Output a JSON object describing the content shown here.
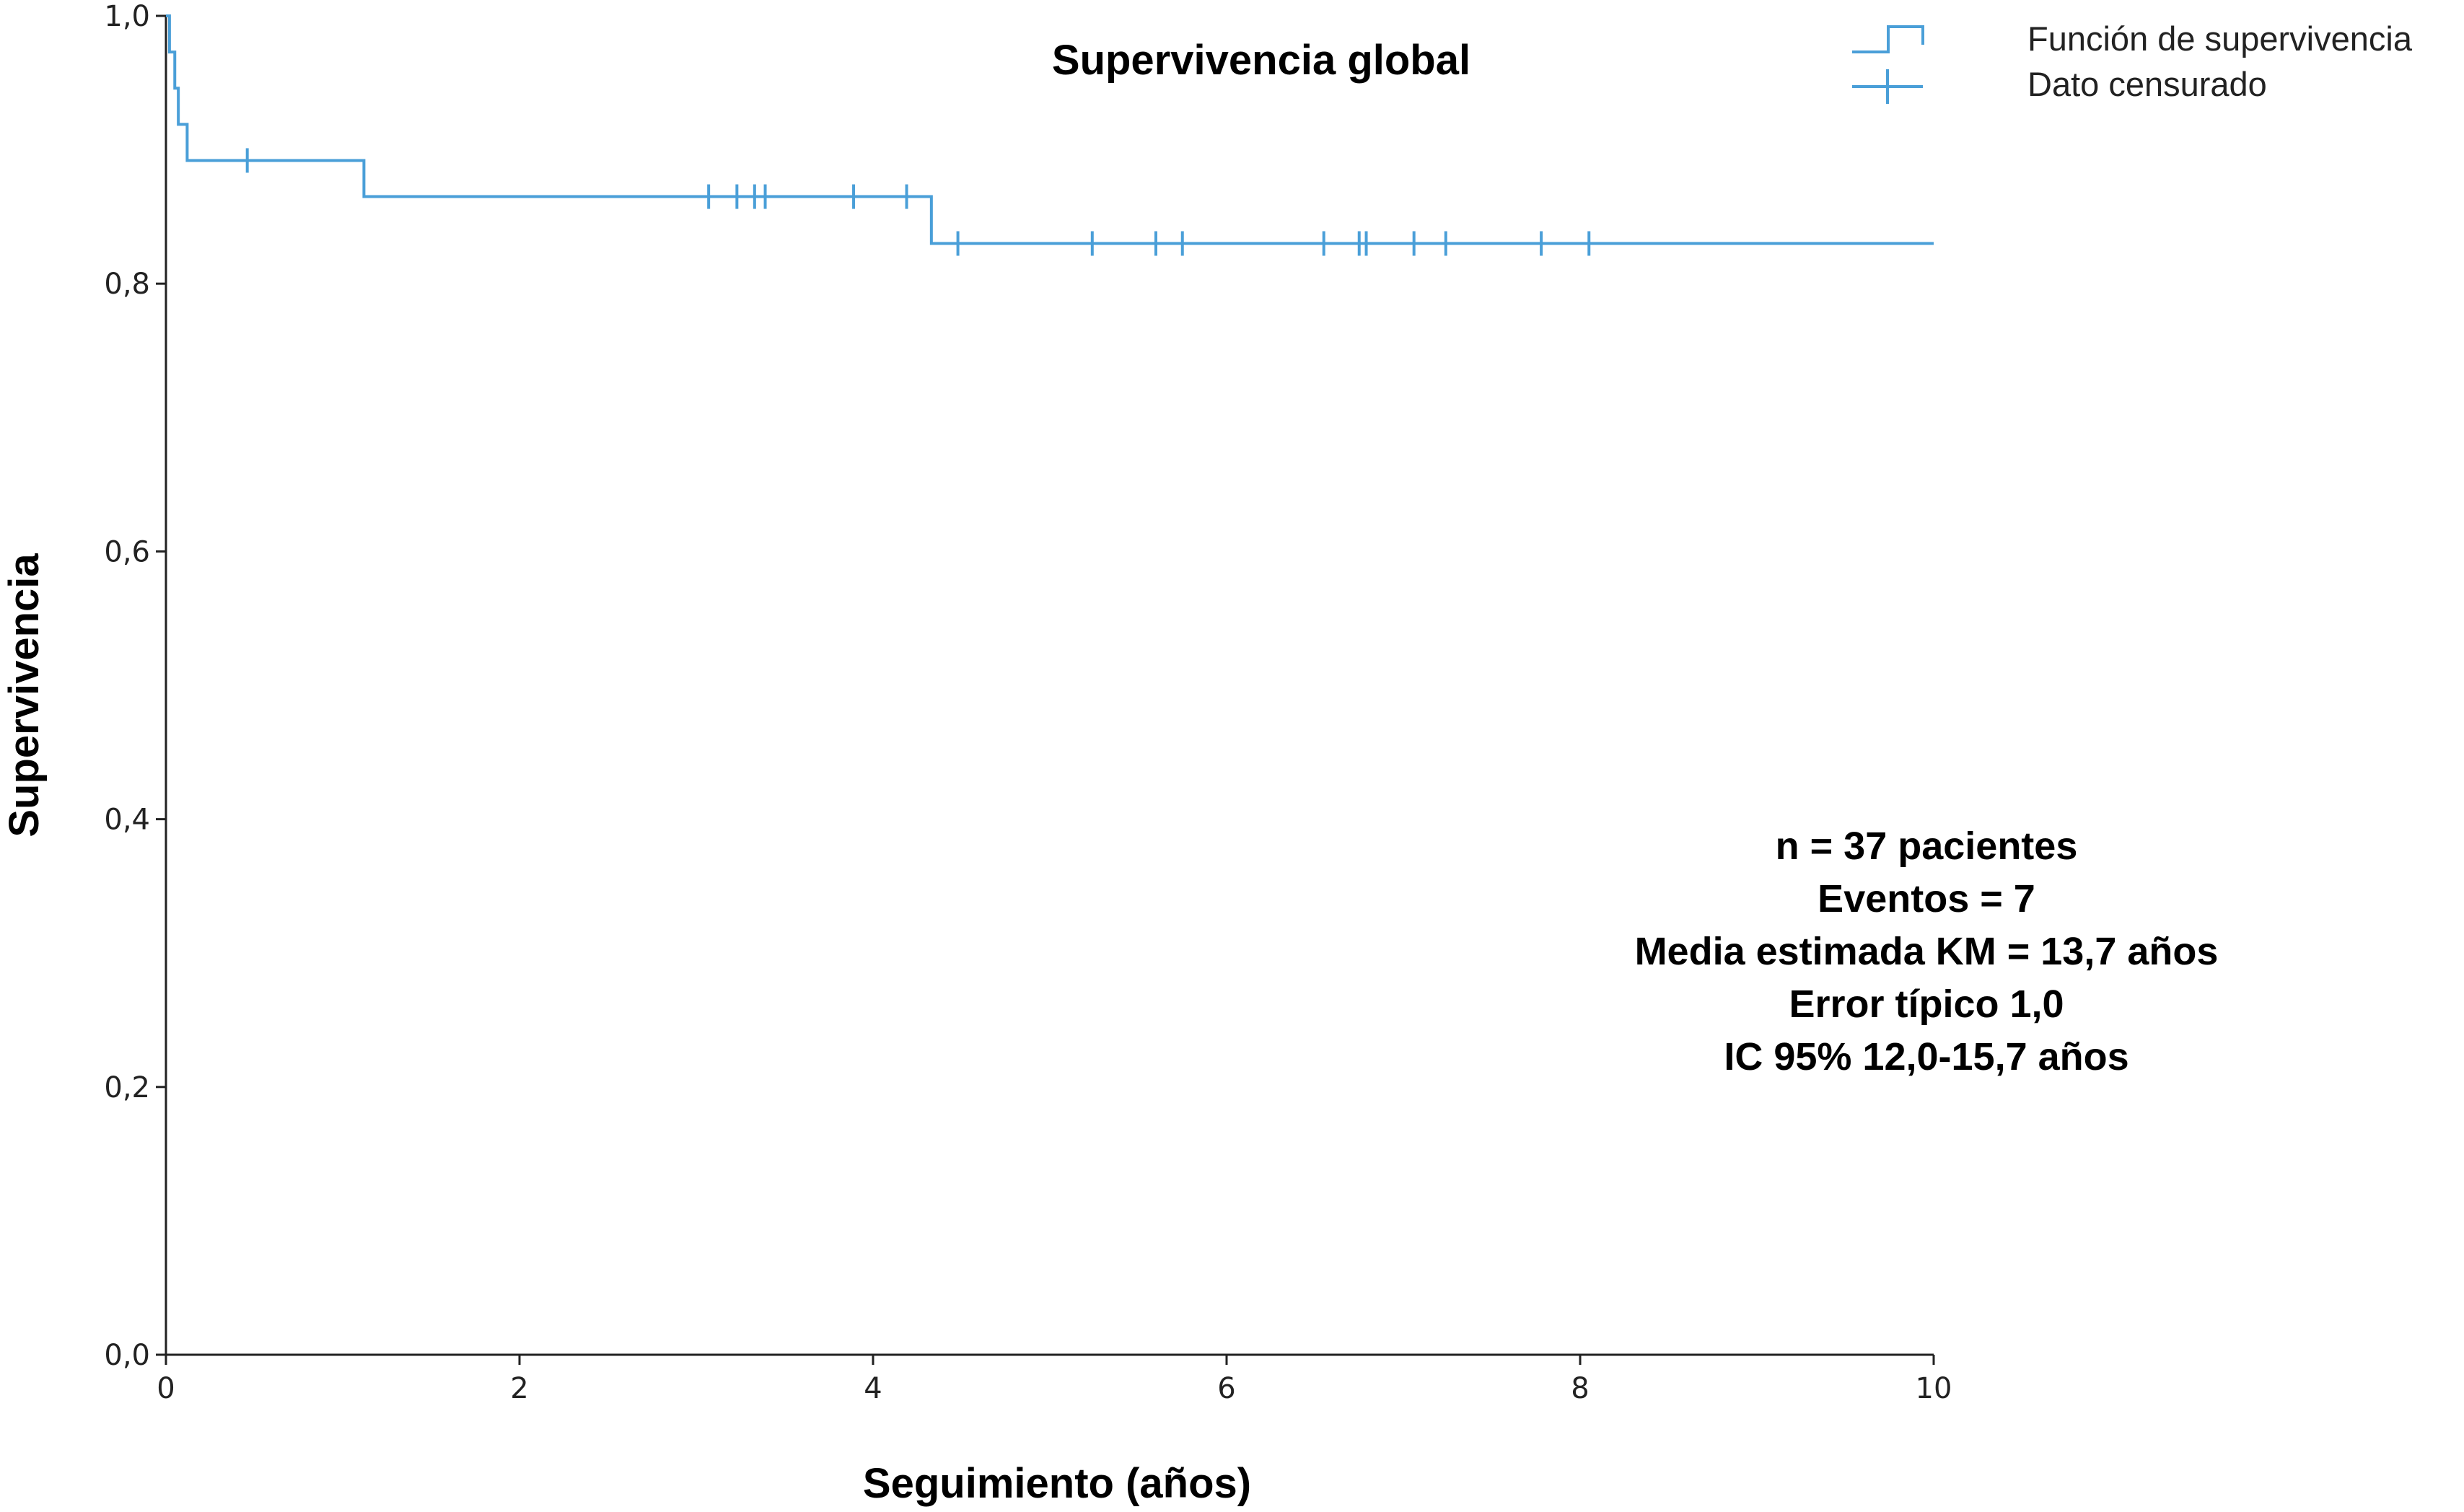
{
  "chart_data": {
    "type": "line",
    "subtype": "kaplan-meier-step",
    "title": "Supervivencia global",
    "xlabel": "Seguimiento (años)",
    "ylabel": "Supervivencia",
    "xlim": [
      0,
      10
    ],
    "ylim": [
      0,
      1
    ],
    "x_ticks": [
      0,
      2,
      4,
      6,
      8,
      10
    ],
    "x_tick_labels": [
      "0",
      "2",
      "4",
      "6",
      "8",
      "10"
    ],
    "y_ticks": [
      0.0,
      0.2,
      0.4,
      0.6,
      0.8,
      1.0
    ],
    "y_tick_labels": [
      "0,0",
      "0,2",
      "0,4",
      "0,6",
      "0,8",
      "1,0"
    ],
    "grid": false,
    "legend_position": "top-right",
    "color": "#4a9fd8",
    "series": [
      {
        "name": "Función de supervivencia",
        "step_x": [
          0,
          0.02,
          0.05,
          0.07,
          0.12,
          1.12,
          4.33,
          10
        ],
        "step_y": [
          1.0,
          0.973,
          0.946,
          0.919,
          0.892,
          0.865,
          0.83,
          0.83
        ]
      }
    ],
    "censored": {
      "name": "Dato censurado",
      "points": [
        {
          "x": 0.46,
          "y": 0.892
        },
        {
          "x": 3.07,
          "y": 0.865
        },
        {
          "x": 3.23,
          "y": 0.865
        },
        {
          "x": 3.33,
          "y": 0.865
        },
        {
          "x": 3.39,
          "y": 0.865
        },
        {
          "x": 3.89,
          "y": 0.865
        },
        {
          "x": 4.19,
          "y": 0.865
        },
        {
          "x": 4.48,
          "y": 0.83
        },
        {
          "x": 5.24,
          "y": 0.83
        },
        {
          "x": 5.6,
          "y": 0.83
        },
        {
          "x": 5.75,
          "y": 0.83
        },
        {
          "x": 6.55,
          "y": 0.83
        },
        {
          "x": 6.75,
          "y": 0.83
        },
        {
          "x": 6.79,
          "y": 0.83
        },
        {
          "x": 7.06,
          "y": 0.83
        },
        {
          "x": 7.24,
          "y": 0.83
        },
        {
          "x": 7.78,
          "y": 0.83
        },
        {
          "x": 8.05,
          "y": 0.83
        }
      ]
    },
    "legend": {
      "entries": [
        "Función de supervivencia",
        "Dato censurado"
      ]
    },
    "annotations": [
      "n = 37 pacientes",
      "Eventos = 7",
      "Media estimada KM = 13,7 años",
      "Error típico 1,0",
      "IC 95% 12,0-15,7 años"
    ]
  }
}
